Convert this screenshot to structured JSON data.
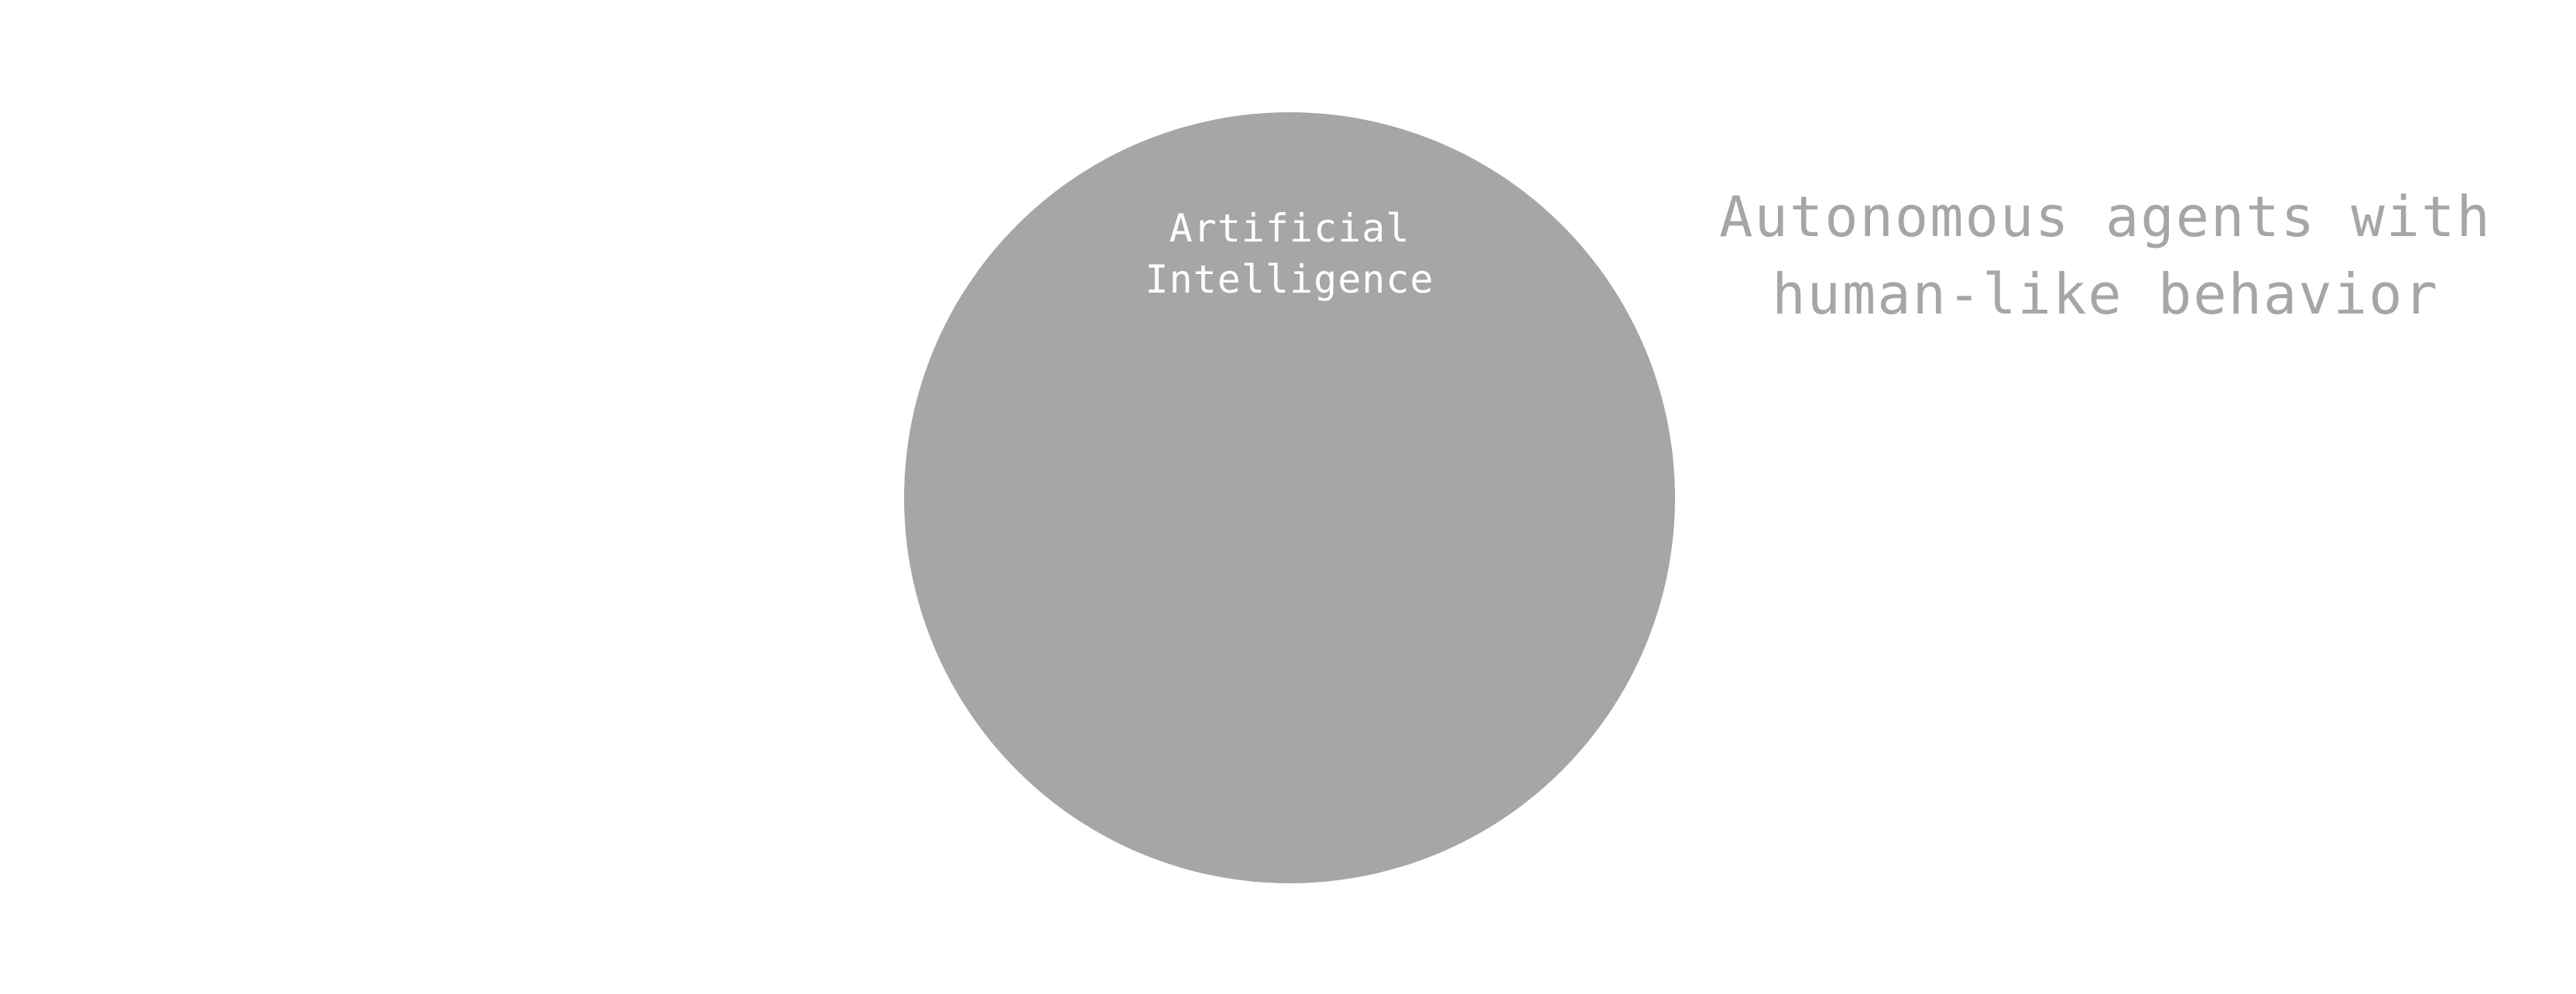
{
  "diagram": {
    "circle": {
      "label_lines": [
        "Artificial",
        "Intelligence"
      ],
      "fill_color": "#a6a6a6",
      "text_color": "#ffffff"
    },
    "description": {
      "lines": [
        "Autonomous agents with",
        "human-like behavior"
      ],
      "text_color": "#a6a6a6"
    }
  }
}
